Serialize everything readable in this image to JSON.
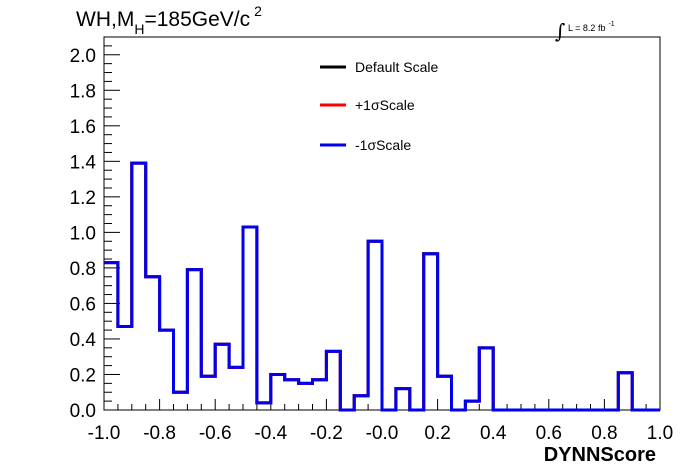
{
  "chart_data": {
    "type": "histogram",
    "title": {
      "main": "WH,M",
      "subscript": "H",
      "rest": "=185GeV/c",
      "superscript": "2"
    },
    "lumi": {
      "integral": "∫",
      "text": "L = 8.2 fb",
      "superscript": "-1"
    },
    "xlabel": "DYNNScore",
    "ylabel": "",
    "xlim": [
      -1.0,
      1.0
    ],
    "ylim": [
      0.0,
      2.1
    ],
    "x_ticks": [
      "-1.0",
      "-0.8",
      "-0.6",
      "-0.4",
      "-0.2",
      "-0.0",
      "0.2",
      "0.4",
      "0.6",
      "0.8",
      "1.0"
    ],
    "y_ticks": [
      "0.0",
      "0.2",
      "0.4",
      "0.6",
      "0.8",
      "1.0",
      "1.2",
      "1.4",
      "1.6",
      "1.8",
      "2.0"
    ],
    "bin_edges": [
      -1.0,
      -0.95,
      -0.9,
      -0.85,
      -0.8,
      -0.75,
      -0.7,
      -0.65,
      -0.6,
      -0.55,
      -0.5,
      -0.45,
      -0.4,
      -0.35,
      -0.3,
      -0.25,
      -0.2,
      -0.15,
      -0.1,
      -0.05,
      0.0,
      0.05,
      0.1,
      0.15,
      0.2,
      0.25,
      0.3,
      0.35,
      0.4,
      0.45,
      0.5,
      0.55,
      0.6,
      0.65,
      0.7,
      0.75,
      0.8,
      0.85,
      0.9,
      0.95,
      1.0
    ],
    "series": [
      {
        "name": "Default Scale",
        "color": "#000000",
        "values": [
          0.83,
          0.47,
          1.39,
          0.75,
          0.45,
          0.1,
          0.79,
          0.19,
          0.37,
          0.24,
          1.03,
          0.04,
          0.2,
          0.17,
          0.15,
          0.17,
          0.33,
          0.0,
          0.08,
          0.95,
          0.0,
          0.12,
          0.0,
          0.88,
          0.19,
          0.0,
          0.05,
          0.35,
          0.0,
          0.0,
          0.0,
          0.0,
          0.0,
          0.0,
          0.0,
          0.0,
          0.0,
          0.21,
          0.0,
          0.0
        ]
      },
      {
        "name": "+1σScale",
        "color": "#ff0000",
        "values": [
          0.83,
          0.47,
          1.39,
          0.75,
          0.45,
          0.1,
          0.79,
          0.19,
          0.37,
          0.24,
          1.03,
          0.04,
          0.2,
          0.17,
          0.15,
          0.17,
          0.33,
          0.0,
          0.08,
          0.95,
          0.0,
          0.12,
          0.0,
          0.88,
          0.19,
          0.0,
          0.05,
          0.35,
          0.0,
          0.0,
          0.0,
          0.0,
          0.0,
          0.0,
          0.0,
          0.0,
          0.0,
          0.21,
          0.0,
          0.0
        ]
      },
      {
        "name": "-1σScale",
        "color": "#0000ee",
        "values": [
          0.83,
          0.47,
          1.39,
          0.75,
          0.45,
          0.1,
          0.79,
          0.19,
          0.37,
          0.24,
          1.03,
          0.04,
          0.2,
          0.17,
          0.15,
          0.17,
          0.33,
          0.0,
          0.08,
          0.95,
          0.0,
          0.12,
          0.0,
          0.88,
          0.19,
          0.0,
          0.05,
          0.35,
          0.0,
          0.0,
          0.0,
          0.0,
          0.0,
          0.0,
          0.0,
          0.0,
          0.0,
          0.21,
          0.0,
          0.0
        ]
      }
    ],
    "legend_position": "top-center",
    "grid": false
  }
}
